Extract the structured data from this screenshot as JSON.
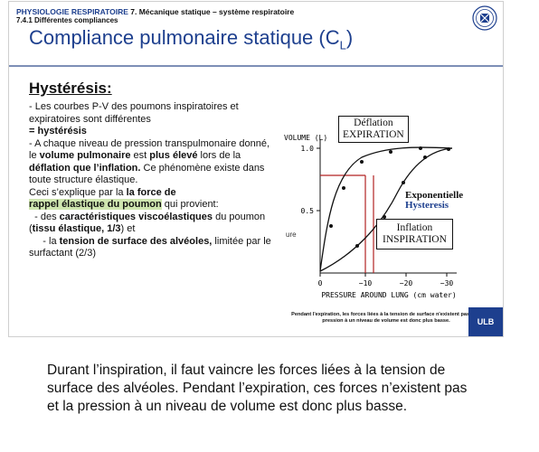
{
  "header": {
    "course": "PHYSIOLOGIE RESPIRATOIRE",
    "section": "7. Mécanique statique – système respiratoire",
    "subsection": "7.4.1 Différentes compliances"
  },
  "title": {
    "main": "Compliance pulmonaire statique (C",
    "sub": "L",
    "end": ")"
  },
  "heading": "Hystérésis:",
  "body": {
    "p1a": "- Les courbes P-V des poumons inspiratoires et expiratoires sont différentes",
    "p1b": "= hystérésis",
    "p2a": "- A chaque niveau de pression transpulmonaire donné, le ",
    "p2b": "volume pulmonaire",
    "p2c": " est ",
    "p2d": "plus élevé",
    "p2e": " lors de la ",
    "p2f": "déflation que l’inflation.",
    "p2g": " Ce phénomène existe dans toute structure élastique.",
    "p3a": "Ceci s’explique par la ",
    "p3b": "la force de",
    "p3c": "rappel élastique du poumon",
    "p3d": " qui provient:",
    "p4a": "-  des ",
    "p4b": "caractéristiques viscoélastiques",
    "p4c": " du poumon (",
    "p4d": "tissu élastique, 1/3",
    "p4e": ") et",
    "p5a": "- la ",
    "p5b": "tension de surface des alvéoles,",
    "p5c": " limitée par le surfactant (2/3)"
  },
  "graph": {
    "ylabel": "VOLUME (L)",
    "xlabel": "PRESSURE AROUND LUNG (cm water)",
    "y_ticks": [
      "1.0",
      "0.5"
    ],
    "x_ticks": [
      "0",
      "−10",
      "−20",
      "−30"
    ],
    "deflation": {
      "line1": "Déflation",
      "line2": "EXPIRATION"
    },
    "inflation": {
      "line1": "Inflation",
      "line2": "INSPIRATION"
    },
    "exponentielle": "Exponentielle",
    "hysteresis": "Hysteresis",
    "ure": "ure",
    "colors": {
      "marker_lines": "#b22222"
    }
  },
  "caption": "Pendant l'expiration, les forces liées à la tension de surface n'existent pas et la pression à un niveau de volume est donc plus basse.",
  "ulb": "ULB",
  "bottom_text": "Durant l’inspiration, il faut vaincre les forces liées à la tension de surface des alvéoles. Pendant l’expiration, ces forces n’existent pas et la pression à un niveau de volume est donc plus basse."
}
